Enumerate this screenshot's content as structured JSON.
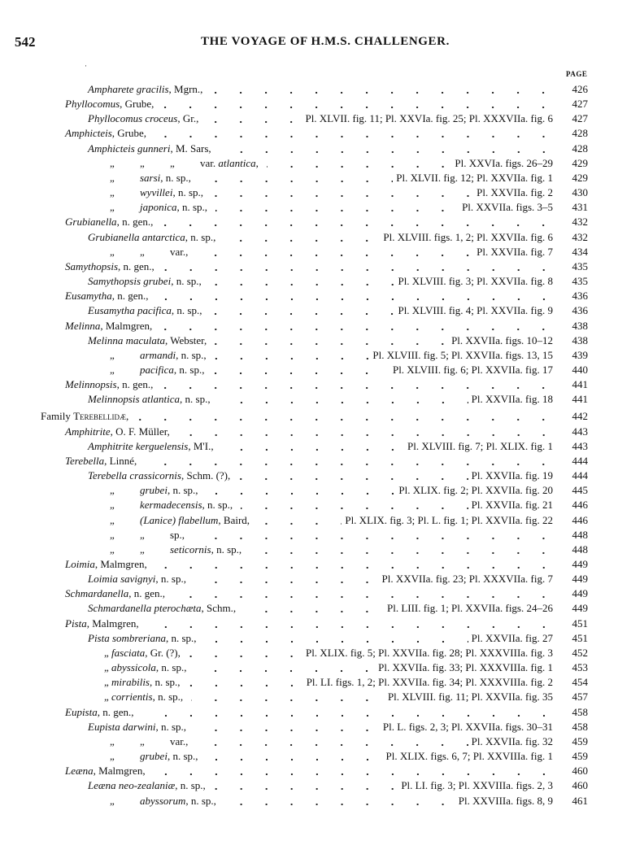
{
  "header": {
    "folio": "542",
    "running_title": "THE VOYAGE OF H.M.S. CHALLENGER.",
    "page_column": "PAGE"
  },
  "entries": [
    {
      "lvl": 1,
      "name": [
        {
          "t": "Ampharete gracilis",
          "i": true
        },
        {
          "t": ", Mgrn.,"
        }
      ],
      "ref": "",
      "page": "426"
    },
    {
      "lvl": 0,
      "name": [
        {
          "t": "Phyllocomus",
          "i": true
        },
        {
          "t": ", Grube,"
        }
      ],
      "ref": "",
      "page": "427"
    },
    {
      "lvl": 1,
      "name": [
        {
          "t": "Phyllocomus croceus",
          "i": true
        },
        {
          "t": ", Gr.,"
        }
      ],
      "ref": "Pl. XLVII. fig. 11; Pl. XXVIa. fig. 25; Pl. XXXVIIa. fig. 6",
      "page": "427"
    },
    {
      "lvl": 0,
      "name": [
        {
          "t": "Amphicteis",
          "i": true
        },
        {
          "t": ", Grube,"
        }
      ],
      "ref": "",
      "page": "428"
    },
    {
      "lvl": 1,
      "name": [
        {
          "t": "Amphicteis gunneri",
          "i": true
        },
        {
          "t": ", M. Sars,"
        }
      ],
      "ref": "",
      "page": "428"
    },
    {
      "lvl": 2,
      "name": [
        {
          "t": "„",
          "d": true
        },
        {
          "t": "„",
          "d": true
        },
        {
          "t": "„",
          "d": true
        },
        {
          "t": "var. "
        },
        {
          "t": "atlantica",
          "i": true
        },
        {
          "t": ","
        }
      ],
      "ref": "Pl. XXVIa. figs. 26–29",
      "page": "429"
    },
    {
      "lvl": 2,
      "name": [
        {
          "t": "„",
          "d": true
        },
        {
          "t": "sarsi",
          "i": true
        },
        {
          "t": ", n. sp.,"
        }
      ],
      "ref": "Pl. XLVII. fig. 12; Pl. XXVIIa. fig. 1",
      "page": "429"
    },
    {
      "lvl": 2,
      "name": [
        {
          "t": "„",
          "d": true
        },
        {
          "t": "wyvillei",
          "i": true
        },
        {
          "t": ", n. sp.,"
        }
      ],
      "ref": "Pl. XXVIIa. fig. 2",
      "page": "430"
    },
    {
      "lvl": 2,
      "name": [
        {
          "t": "„",
          "d": true
        },
        {
          "t": "japonica",
          "i": true
        },
        {
          "t": ", n. sp.,"
        }
      ],
      "ref": "Pl. XXVIIa. figs. 3–5",
      "page": "431"
    },
    {
      "lvl": 0,
      "name": [
        {
          "t": "Grubianella",
          "i": true
        },
        {
          "t": ", n. gen.,"
        }
      ],
      "ref": "",
      "page": "432"
    },
    {
      "lvl": 1,
      "name": [
        {
          "t": "Grubianella antarctica",
          "i": true
        },
        {
          "t": ", n. sp.,"
        }
      ],
      "ref": "Pl. XLVIII. figs. 1, 2; Pl. XXVIIa. fig. 6",
      "page": "432"
    },
    {
      "lvl": 2,
      "name": [
        {
          "t": "„",
          "d": true
        },
        {
          "t": "„",
          "d": true
        },
        {
          "t": "var.,"
        }
      ],
      "ref": "Pl. XXVIIa. fig. 7",
      "page": "434"
    },
    {
      "lvl": 0,
      "name": [
        {
          "t": "Samythopsis",
          "i": true
        },
        {
          "t": ", n. gen.,"
        }
      ],
      "ref": "",
      "page": "435"
    },
    {
      "lvl": 1,
      "name": [
        {
          "t": "Samythopsis grubei",
          "i": true
        },
        {
          "t": ", n. sp.,"
        }
      ],
      "ref": "Pl. XLVIII. fig. 3; Pl. XXVIIa. fig. 8",
      "page": "435"
    },
    {
      "lvl": 0,
      "name": [
        {
          "t": "Eusamytha",
          "i": true
        },
        {
          "t": ", n. gen.,"
        }
      ],
      "ref": "",
      "page": "436"
    },
    {
      "lvl": 1,
      "name": [
        {
          "t": "Eusamytha pacifica",
          "i": true
        },
        {
          "t": ", n. sp.,"
        }
      ],
      "ref": "Pl. XLVIII. fig. 4; Pl. XXVIIa. fig. 9",
      "page": "436"
    },
    {
      "lvl": 0,
      "name": [
        {
          "t": "Melinna",
          "i": true
        },
        {
          "t": ", Malmgren,"
        }
      ],
      "ref": "",
      "page": "438"
    },
    {
      "lvl": 1,
      "name": [
        {
          "t": "Melinna maculata",
          "i": true
        },
        {
          "t": ", Webster,"
        }
      ],
      "ref": "Pl. XXVIIa. figs. 10–12",
      "page": "438"
    },
    {
      "lvl": 2,
      "name": [
        {
          "t": "„",
          "d": true
        },
        {
          "t": "armandi",
          "i": true
        },
        {
          "t": ", n. sp.,"
        }
      ],
      "ref": "Pl. XLVIII. fig. 5; Pl. XXVIIa. figs. 13, 15",
      "page": "439"
    },
    {
      "lvl": 2,
      "name": [
        {
          "t": "„",
          "d": true
        },
        {
          "t": "pacifica",
          "i": true
        },
        {
          "t": ", n. sp.,"
        }
      ],
      "ref": "Pl. XLVIII. fig. 6; Pl. XXVIIa. fig. 17",
      "page": "440"
    },
    {
      "lvl": 0,
      "name": [
        {
          "t": "Melinnopsis",
          "i": true
        },
        {
          "t": ", n. gen.,"
        }
      ],
      "ref": "",
      "page": "441"
    },
    {
      "lvl": 1,
      "name": [
        {
          "t": "Melinnopsis atlantica",
          "i": true
        },
        {
          "t": ", n. sp.,"
        }
      ],
      "ref": "Pl. XXVIIa. fig. 18",
      "page": "441"
    },
    {
      "lvl": -1,
      "gap": true,
      "name": [
        {
          "t": "Family "
        },
        {
          "t": "Terebellidæ,",
          "sc": true
        }
      ],
      "ref": "",
      "page": "442"
    },
    {
      "lvl": 0,
      "name": [
        {
          "t": "Amphitrite",
          "i": true
        },
        {
          "t": ", O. F. Müller,"
        }
      ],
      "ref": "",
      "page": "443"
    },
    {
      "lvl": 1,
      "name": [
        {
          "t": "Amphitrite kerguelensis",
          "i": true
        },
        {
          "t": ", M'I.,"
        }
      ],
      "ref": "Pl. XLVIII. fig. 7; Pl. XLIX. fig. 1",
      "page": "443"
    },
    {
      "lvl": 0,
      "name": [
        {
          "t": "Terebella",
          "i": true
        },
        {
          "t": ", Linné,"
        }
      ],
      "ref": "",
      "page": "444"
    },
    {
      "lvl": 1,
      "name": [
        {
          "t": "Terebella crassicornis",
          "i": true
        },
        {
          "t": ", Schm. (?),"
        }
      ],
      "ref": "Pl. XXVIIa. fig. 19",
      "page": "444"
    },
    {
      "lvl": 2,
      "name": [
        {
          "t": "„",
          "d": true
        },
        {
          "t": "grubei",
          "i": true
        },
        {
          "t": ", n. sp.,"
        }
      ],
      "ref": "Pl. XLIX. fig. 2; Pl. XXVIIa. fig. 20",
      "page": "445"
    },
    {
      "lvl": 2,
      "name": [
        {
          "t": "„",
          "d": true
        },
        {
          "t": "kermadecensis",
          "i": true
        },
        {
          "t": ", n. sp.,"
        }
      ],
      "ref": "Pl. XXVIIa. fig. 21",
      "page": "446"
    },
    {
      "lvl": 2,
      "name": [
        {
          "t": "„",
          "d": true
        },
        {
          "t": "(Lanice) flabellum",
          "i": true
        },
        {
          "t": ", Baird,"
        }
      ],
      "ref": "Pl. XLIX. fig. 3; Pl. L. fig. 1; Pl. XXVIIa. fig. 22",
      "page": "446"
    },
    {
      "lvl": 2,
      "name": [
        {
          "t": "„",
          "d": true
        },
        {
          "t": "„",
          "d": true
        },
        {
          "t": "sp.,"
        }
      ],
      "ref": "",
      "page": "448"
    },
    {
      "lvl": 2,
      "name": [
        {
          "t": "„",
          "d": true
        },
        {
          "t": "„",
          "d": true
        },
        {
          "t": "seticornis",
          "i": true
        },
        {
          "t": ", n. sp.,"
        }
      ],
      "ref": "",
      "page": "448"
    },
    {
      "lvl": 0,
      "name": [
        {
          "t": "Loimia",
          "i": true
        },
        {
          "t": ", Malmgren,"
        }
      ],
      "ref": "",
      "page": "449"
    },
    {
      "lvl": 1,
      "name": [
        {
          "t": "Loimia savignyi",
          "i": true
        },
        {
          "t": ", n. sp.,"
        }
      ],
      "ref": "Pl. XXVIIa. fig. 23; Pl. XXXVIIa. fig. 7",
      "page": "449"
    },
    {
      "lvl": 0,
      "name": [
        {
          "t": "Schmardanella",
          "i": true
        },
        {
          "t": ", n. gen.,"
        }
      ],
      "ref": "",
      "page": "449"
    },
    {
      "lvl": 1,
      "name": [
        {
          "t": "Schmardanella pterochæta",
          "i": true
        },
        {
          "t": ", Schm.,"
        }
      ],
      "ref": "Pl. LIII. fig. 1; Pl. XXVIIa. figs. 24–26",
      "page": "449"
    },
    {
      "lvl": 0,
      "name": [
        {
          "t": "Pista",
          "i": true
        },
        {
          "t": ", Malmgren,"
        }
      ],
      "ref": "",
      "page": "451"
    },
    {
      "lvl": 1,
      "name": [
        {
          "t": "Pista sombreriana",
          "i": true
        },
        {
          "t": ", n. sp.,"
        }
      ],
      "ref": "Pl. XXVIIa. fig. 27",
      "page": "451"
    },
    {
      "lvl": 3,
      "name": [
        {
          "t": "„ "
        },
        {
          "t": "fasciata",
          "i": true
        },
        {
          "t": ", Gr. (?),"
        }
      ],
      "ref": "Pl. XLIX. fig. 5; Pl. XXVIIa. fig. 28; Pl. XXXVIIIa. fig. 3",
      "page": "452"
    },
    {
      "lvl": 3,
      "name": [
        {
          "t": "„ "
        },
        {
          "t": "abyssicola",
          "i": true
        },
        {
          "t": ", n. sp.,"
        }
      ],
      "ref": "Pl. XXVIIa. fig. 33; Pl. XXXVIIIa. fig. 1",
      "page": "453"
    },
    {
      "lvl": 3,
      "name": [
        {
          "t": "„ "
        },
        {
          "t": "mirabilis",
          "i": true
        },
        {
          "t": ", n. sp.,"
        }
      ],
      "ref": "Pl. LI. figs. 1, 2; Pl. XXVIIa. fig. 34; Pl. XXXVIIIa. fig. 2",
      "page": "454"
    },
    {
      "lvl": 3,
      "name": [
        {
          "t": "„ "
        },
        {
          "t": "corrientis",
          "i": true
        },
        {
          "t": ", n. sp.,"
        }
      ],
      "ref": "Pl. XLVIII. fig. 11; Pl. XXVIIa. fig. 35",
      "page": "457"
    },
    {
      "lvl": 0,
      "name": [
        {
          "t": "Eupista",
          "i": true
        },
        {
          "t": ", n. gen.,"
        }
      ],
      "ref": "",
      "page": "458"
    },
    {
      "lvl": 1,
      "name": [
        {
          "t": "Eupista darwini",
          "i": true
        },
        {
          "t": ", n. sp.,"
        }
      ],
      "ref": "Pl. L. figs. 2, 3; Pl. XXVIIa. figs. 30–31",
      "page": "458"
    },
    {
      "lvl": 2,
      "name": [
        {
          "t": "„",
          "d": true
        },
        {
          "t": "„",
          "d": true
        },
        {
          "t": "var.,"
        }
      ],
      "ref": "Pl. XXVIIa. fig. 32",
      "page": "459"
    },
    {
      "lvl": 2,
      "name": [
        {
          "t": "„",
          "d": true
        },
        {
          "t": "grubei",
          "i": true
        },
        {
          "t": ", n. sp.,"
        }
      ],
      "ref": "Pl. XLIX. figs. 6, 7; Pl. XXVIIIa. fig. 1",
      "page": "459"
    },
    {
      "lvl": 0,
      "name": [
        {
          "t": "Leæna",
          "i": true
        },
        {
          "t": ", Malmgren,"
        }
      ],
      "ref": "",
      "page": "460"
    },
    {
      "lvl": 1,
      "name": [
        {
          "t": "Leæna neo-zealaniæ",
          "i": true
        },
        {
          "t": ", n. sp.,"
        }
      ],
      "ref": "Pl. LI. fig. 3; Pl. XXVIIIa. figs. 2, 3",
      "page": "460"
    },
    {
      "lvl": 2,
      "name": [
        {
          "t": "„",
          "d": true
        },
        {
          "t": "abyssorum",
          "i": true
        },
        {
          "t": ", n. sp.,"
        }
      ],
      "ref": "Pl. XXVIIIa. figs. 8, 9",
      "page": "461"
    }
  ]
}
